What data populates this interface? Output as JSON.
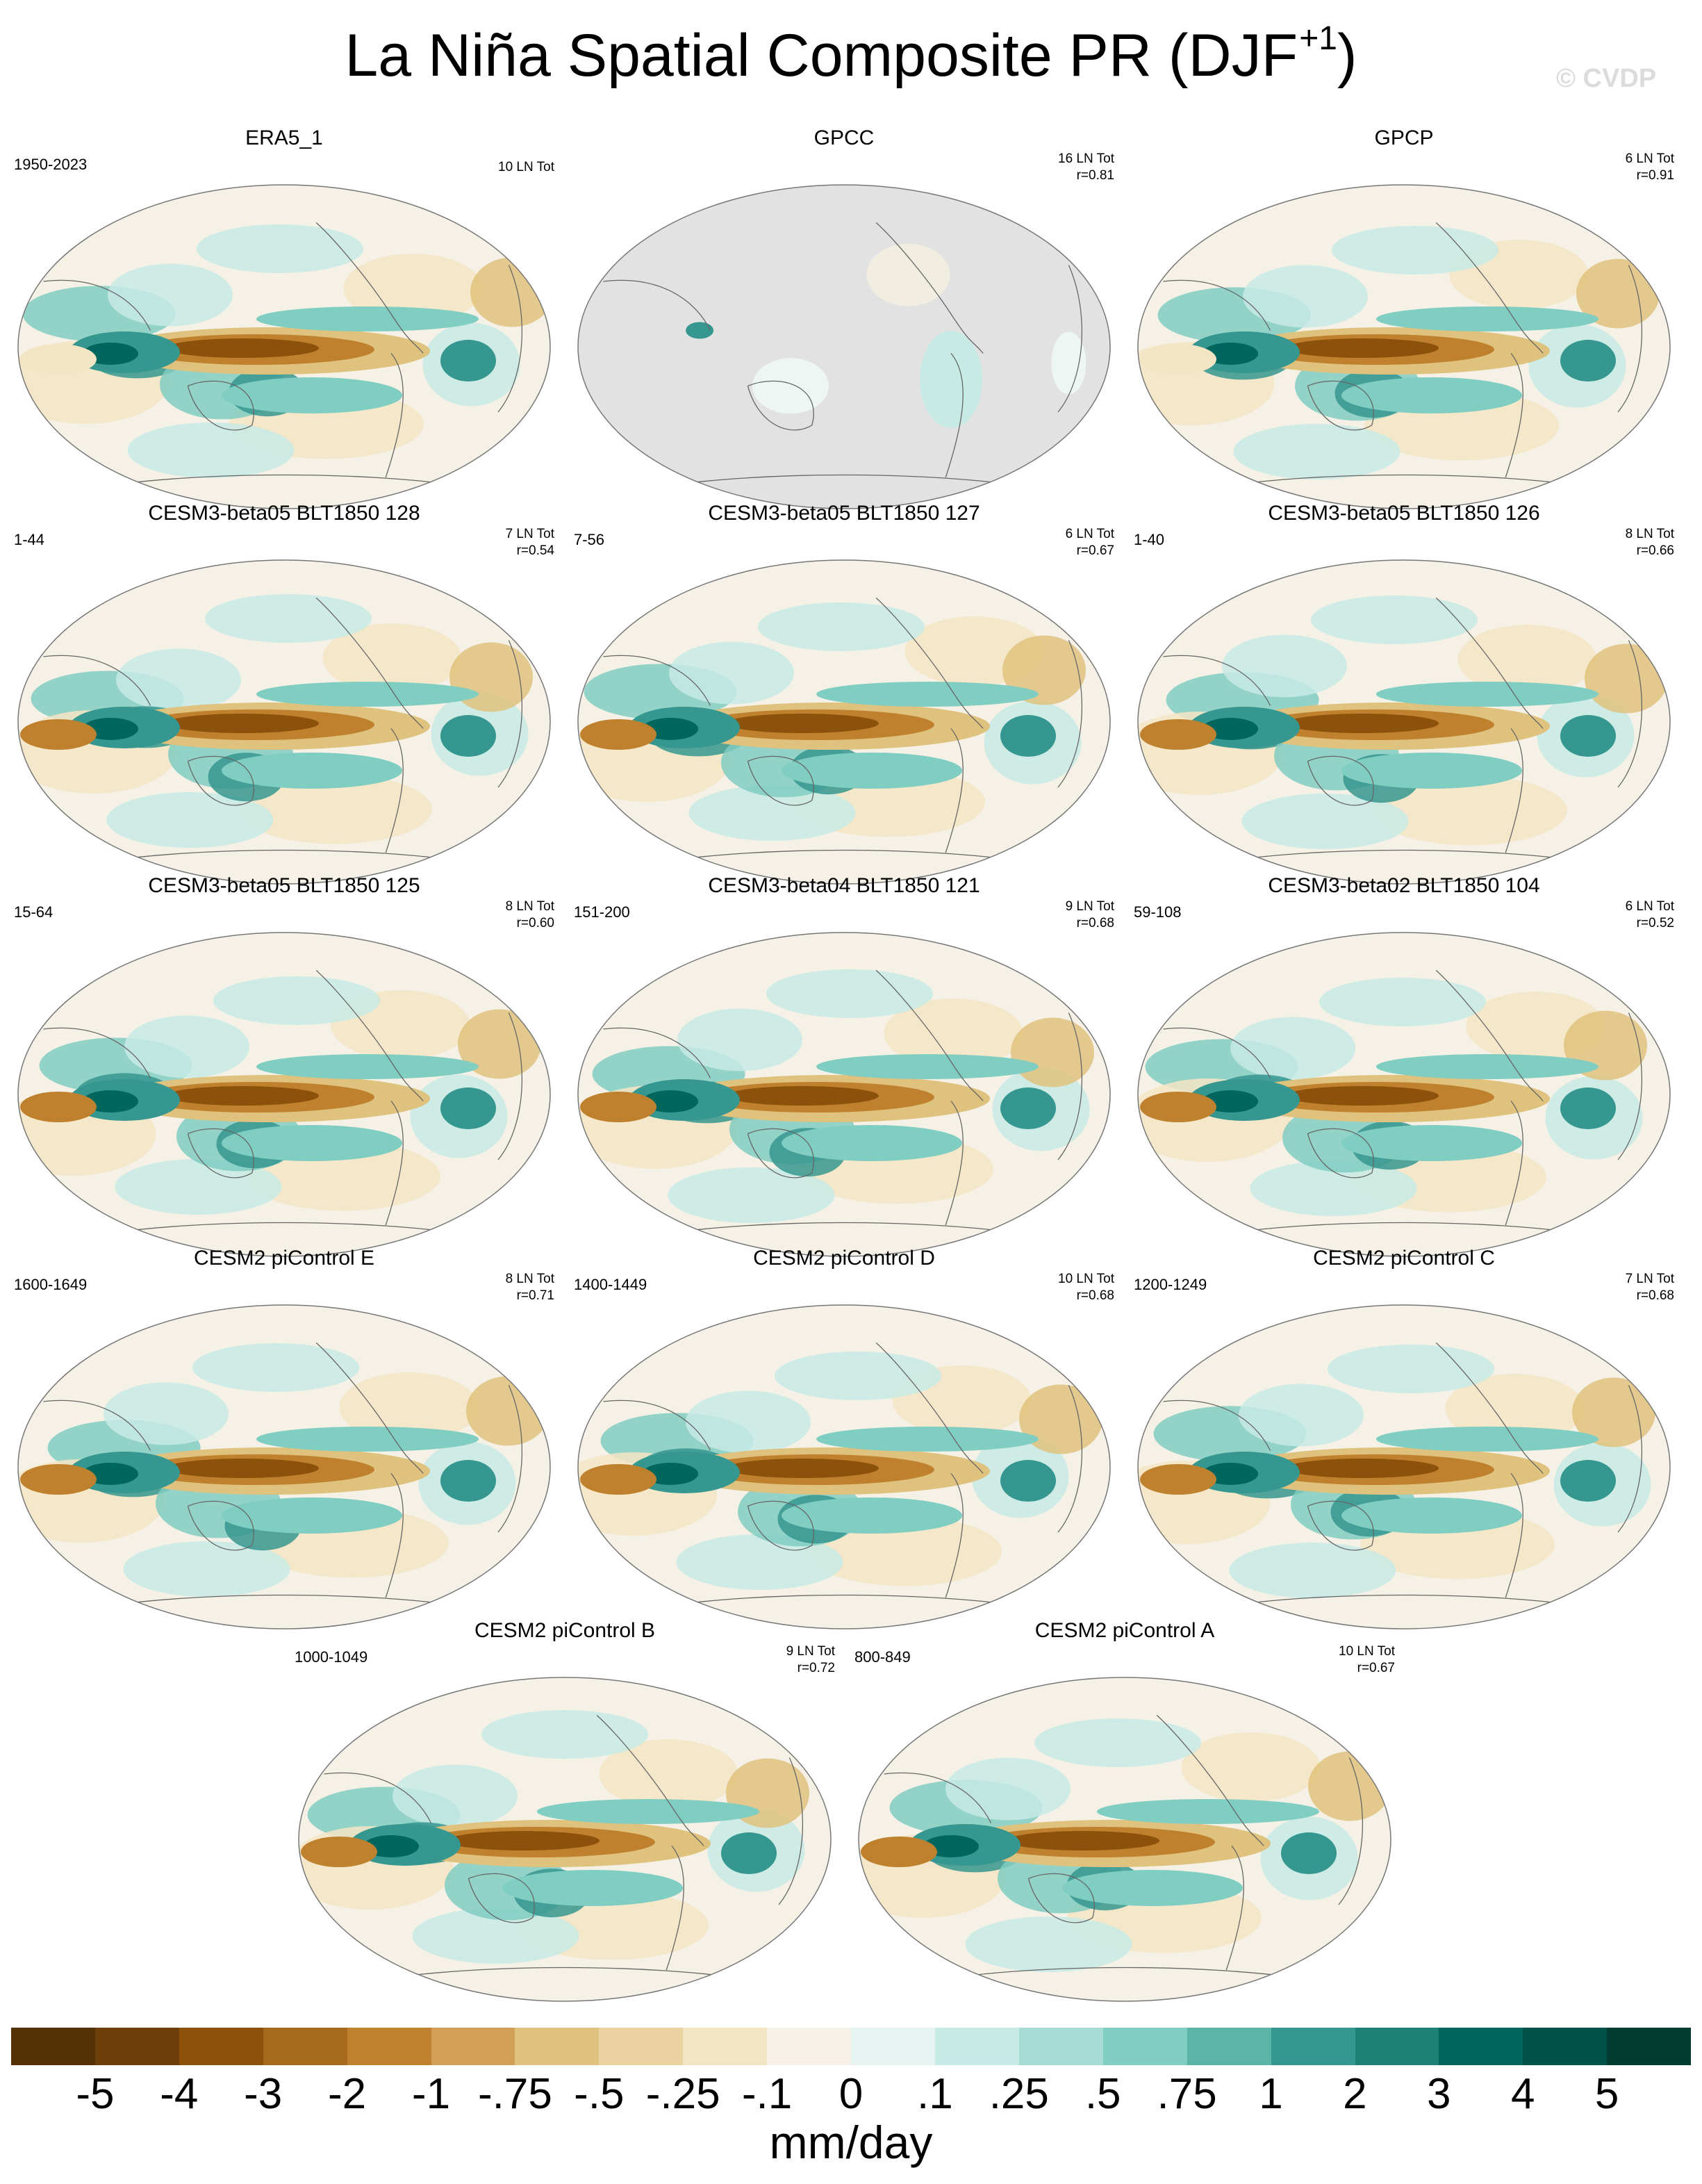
{
  "title": "La Niña Spatial Composite PR (DJF",
  "title_superscript": "+1",
  "title_close": ")",
  "watermark": "© CVDP",
  "colors": {
    "ocean_light": "#eef6f3",
    "neutral": "#f5f1e6",
    "land_outline": "#666666",
    "missing": "#e2e2e2"
  },
  "panels": [
    {
      "title": "ERA5_1",
      "years": "1950-2023",
      "count": "10 LN Tot",
      "corr": "",
      "style": "obs"
    },
    {
      "title": "GPCC",
      "years": "",
      "count": "16 LN Tot",
      "corr": "r=0.81",
      "style": "land"
    },
    {
      "title": "GPCP",
      "years": "",
      "count": "6 LN Tot",
      "corr": "r=0.91",
      "style": "obs"
    },
    {
      "title": "CESM3-beta05 BLT1850 128",
      "years": "1-44",
      "count": "7 LN Tot",
      "corr": "r=0.54",
      "style": "model"
    },
    {
      "title": "CESM3-beta05 BLT1850 127",
      "years": "7-56",
      "count": "6 LN Tot",
      "corr": "r=0.67",
      "style": "model"
    },
    {
      "title": "CESM3-beta05 BLT1850 126",
      "years": "1-40",
      "count": "8 LN Tot",
      "corr": "r=0.66",
      "style": "model"
    },
    {
      "title": "CESM3-beta05 BLT1850 125",
      "years": "15-64",
      "count": "8 LN Tot",
      "corr": "r=0.60",
      "style": "model"
    },
    {
      "title": "CESM3-beta04 BLT1850 121",
      "years": "151-200",
      "count": "9 LN Tot",
      "corr": "r=0.68",
      "style": "model"
    },
    {
      "title": "CESM3-beta02 BLT1850 104",
      "years": "59-108",
      "count": "6 LN Tot",
      "corr": "r=0.52",
      "style": "model"
    },
    {
      "title": "CESM2 piControl E",
      "years": "1600-1649",
      "count": "8 LN Tot",
      "corr": "r=0.71",
      "style": "model"
    },
    {
      "title": "CESM2 piControl D",
      "years": "1400-1449",
      "count": "10 LN Tot",
      "corr": "r=0.68",
      "style": "model"
    },
    {
      "title": "CESM2 piControl C",
      "years": "1200-1249",
      "count": "7 LN Tot",
      "corr": "r=0.68",
      "style": "model"
    },
    {
      "title": "CESM2 piControl B",
      "years": "1000-1049",
      "count": "9 LN Tot",
      "corr": "r=0.72",
      "style": "model"
    },
    {
      "title": "CESM2 piControl A",
      "years": "800-849",
      "count": "10 LN Tot",
      "corr": "r=0.67",
      "style": "model"
    }
  ],
  "colorbar": {
    "colors": [
      "#543005",
      "#6e3e0b",
      "#8c510a",
      "#a66a1f",
      "#bf812d",
      "#d19f55",
      "#dfc27d",
      "#ead3a0",
      "#f3e5c4",
      "#f5f1e8",
      "#e7f3f1",
      "#c7eae5",
      "#a7dcd4",
      "#80cdc1",
      "#5ab4a8",
      "#35978f",
      "#1d8177",
      "#01665e",
      "#00524a",
      "#003c30"
    ],
    "labels": [
      "-5",
      "-4",
      "-3",
      "-2",
      "-1",
      "-.75",
      "-.5",
      "-.25",
      "-.1",
      "0",
      ".1",
      ".25",
      ".5",
      ".75",
      "1",
      "2",
      "3",
      "4",
      "5"
    ],
    "units": "mm/day"
  }
}
